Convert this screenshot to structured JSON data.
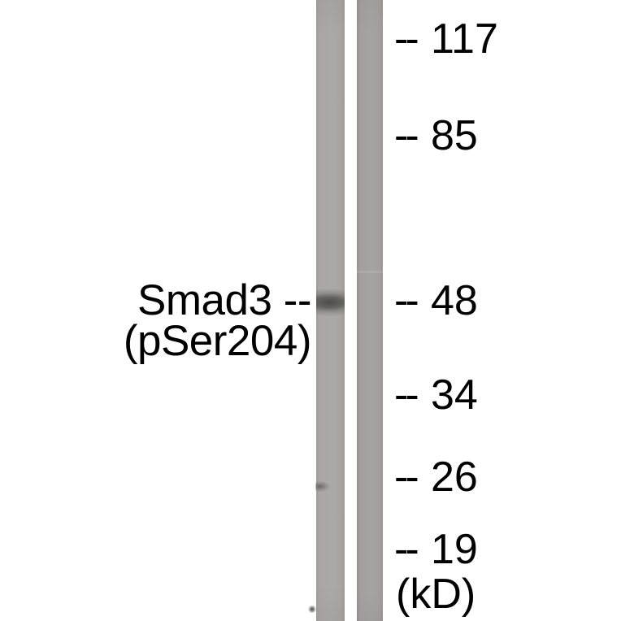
{
  "figure_type": "western_blot",
  "colors": {
    "background": "#ffffff",
    "text": "#000000",
    "lane1_gray": "#a9a7a5",
    "lane2_gray": "#a3a1a0",
    "band_dark": "#3a3a3a"
  },
  "antibody_label": {
    "line1": "Smad3 --",
    "line2": "(pSer204)"
  },
  "ladder": {
    "unit_label": "(kD)",
    "markers": [
      {
        "dash": "--",
        "value": "117"
      },
      {
        "dash": "--",
        "value": "85"
      },
      {
        "dash": "--",
        "value": "48"
      },
      {
        "dash": "--",
        "value": "34"
      },
      {
        "dash": "--",
        "value": "26"
      },
      {
        "dash": "--",
        "value": "19"
      }
    ]
  },
  "lanes": [
    {
      "name": "lane-1",
      "band_aligned_with_marker": "48"
    },
    {
      "name": "lane-2"
    }
  ]
}
